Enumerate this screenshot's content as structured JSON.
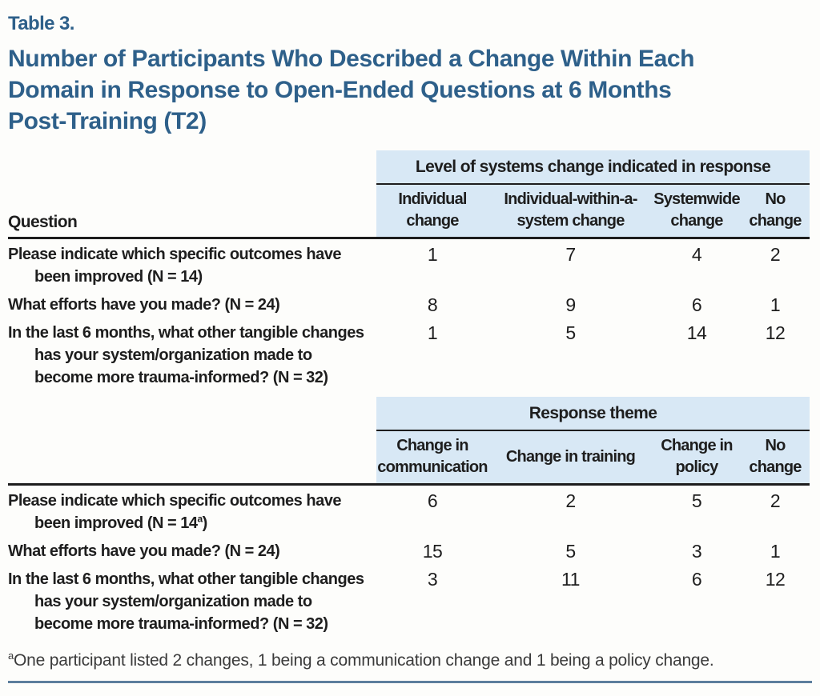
{
  "header": {
    "table_label": "Table 3.",
    "title": "Number of Participants Who Described a Change Within Each Domain in Response to Open-Ended Questions at 6 Months Post-Training (T2)",
    "title_lines": [
      "Number of Participants Who Described a Change Within Each",
      "Domain in Response to Open-Ended Questions at 6 Months",
      "Post-Training (T2)"
    ]
  },
  "colors": {
    "title_blue": "#2e608a",
    "header_bg": "#d8e8f5",
    "rule_dark": "#1d1d1d",
    "rule_bottom_blue": "#5d7e9d"
  },
  "tables": [
    {
      "span_header": "Level of systems change indicated in response",
      "question_header": "Question",
      "columns": [
        "Individual change",
        "Individual-within-a-system change",
        "Systemwide change",
        "No change"
      ],
      "rows": [
        {
          "question": "Please indicate which specific outcomes have been improved (N = 14)",
          "values": [
            "1",
            "7",
            "4",
            "2"
          ]
        },
        {
          "question": "What efforts have you made? (N = 24)",
          "values": [
            "8",
            "9",
            "6",
            "1"
          ]
        },
        {
          "question": "In the last 6 months, what other tangible changes has your system/organization made to become more trauma-informed? (N = 32)",
          "values": [
            "1",
            "5",
            "14",
            "12"
          ]
        }
      ]
    },
    {
      "span_header": "Response theme",
      "question_header": "",
      "columns": [
        "Change in communication",
        "Change in training",
        "Change in policy",
        "No change"
      ],
      "rows": [
        {
          "question_prefix": "Please indicate which specific outcomes have been improved (N = 14",
          "question_sup": "a",
          "question_suffix": ")",
          "values": [
            "6",
            "2",
            "5",
            "2"
          ]
        },
        {
          "question": "What efforts have you made? (N = 24)",
          "values": [
            "15",
            "5",
            "3",
            "1"
          ]
        },
        {
          "question": "In the last 6 months, what other tangible changes has your system/organization made to become more trauma-informed? (N = 32)",
          "values": [
            "3",
            "11",
            "6",
            "12"
          ]
        }
      ]
    }
  ],
  "footnote": {
    "marker": "a",
    "text": "One participant listed 2 changes, 1 being a communication change and 1 being a policy change."
  }
}
